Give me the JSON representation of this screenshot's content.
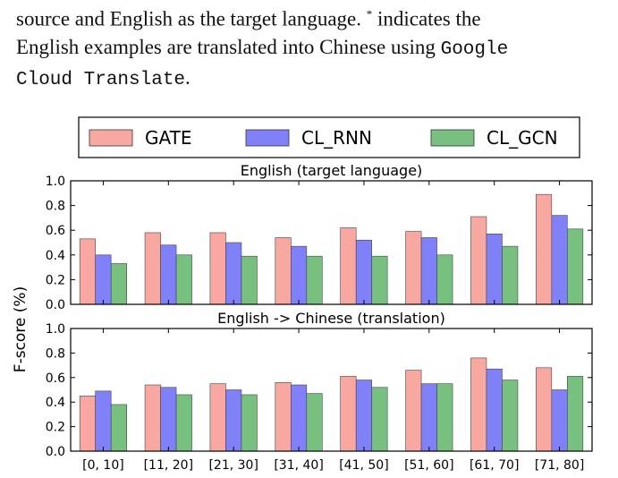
{
  "caption": {
    "line1": "source and English as the target language.",
    "star": "*",
    "line1_end": "indicates the",
    "line2": "English examples are translated into Chinese using",
    "code_a": "Google",
    "code_b": "Cloud Translate",
    "period": "."
  },
  "legend": {
    "placement": "top",
    "entries": [
      "GATE",
      "CL_RNN",
      "CL_GCN"
    ]
  },
  "colors": {
    "GATE": "#f8a8a0",
    "CL_RNN": "#8080f8",
    "CL_GCN": "#78c080"
  },
  "chart_data": [
    {
      "type": "bar",
      "title": "English (target language)",
      "ylabel": "F-score (%)",
      "xlabel": "",
      "ylim": [
        0,
        1.0
      ],
      "yticks": [
        "0.0",
        "0.2",
        "0.4",
        "0.6",
        "0.8",
        "1.0"
      ],
      "categories": [
        "[0, 10]",
        "[11, 20]",
        "[21, 30]",
        "[31, 40]",
        "[41, 50]",
        "[51, 60]",
        "[61, 70]",
        "[71, 80]"
      ],
      "series": [
        {
          "name": "GATE",
          "values": [
            0.53,
            0.58,
            0.58,
            0.54,
            0.62,
            0.59,
            0.71,
            0.89
          ]
        },
        {
          "name": "CL_RNN",
          "values": [
            0.4,
            0.48,
            0.5,
            0.47,
            0.52,
            0.54,
            0.57,
            0.72
          ]
        },
        {
          "name": "CL_GCN",
          "values": [
            0.33,
            0.4,
            0.39,
            0.39,
            0.39,
            0.4,
            0.47,
            0.61
          ]
        }
      ],
      "grid": false
    },
    {
      "type": "bar",
      "title": "English -> Chinese (translation)",
      "ylabel": "F-score (%)",
      "xlabel": "",
      "ylim": [
        0,
        1.0
      ],
      "yticks": [
        "0.0",
        "0.2",
        "0.4",
        "0.6",
        "0.8",
        "1.0"
      ],
      "categories": [
        "[0, 10]",
        "[11, 20]",
        "[21, 30]",
        "[31, 40]",
        "[41, 50]",
        "[51, 60]",
        "[61, 70]",
        "[71, 80]"
      ],
      "series": [
        {
          "name": "GATE",
          "values": [
            0.45,
            0.54,
            0.55,
            0.56,
            0.61,
            0.66,
            0.76,
            0.68
          ]
        },
        {
          "name": "CL_RNN",
          "values": [
            0.49,
            0.52,
            0.5,
            0.54,
            0.58,
            0.55,
            0.67,
            0.5
          ]
        },
        {
          "name": "CL_GCN",
          "values": [
            0.38,
            0.46,
            0.46,
            0.47,
            0.52,
            0.55,
            0.58,
            0.61
          ]
        }
      ],
      "grid": false
    }
  ]
}
